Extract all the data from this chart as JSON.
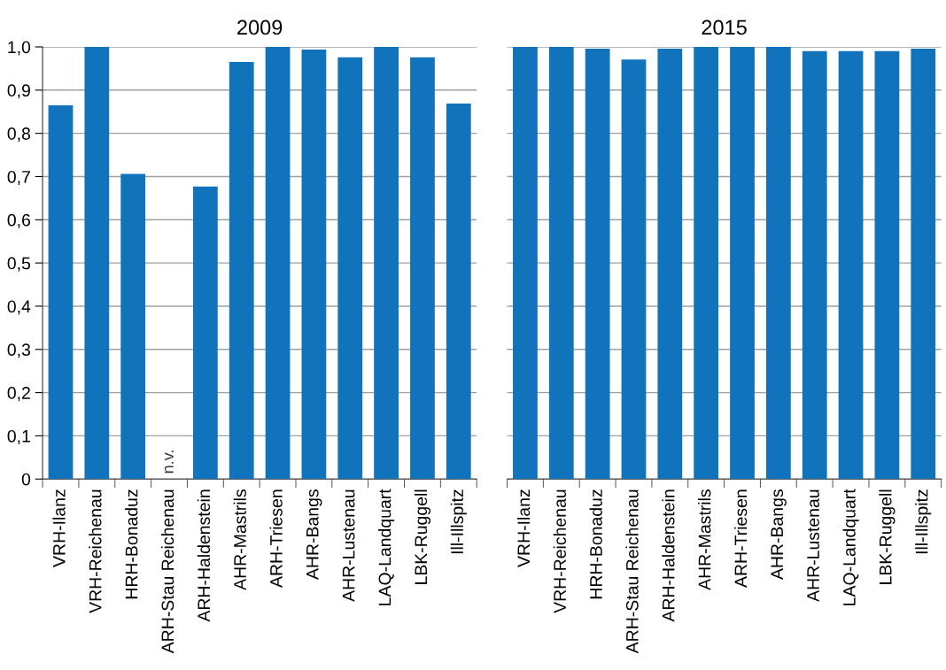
{
  "chart_data": [
    {
      "type": "bar",
      "title": "2009",
      "categories": [
        "VRH-Ilanz",
        "VRH-Reichenau",
        "HRH-Bonaduz",
        "ARH-Stau Reichenau",
        "ARH-Haldenstein",
        "AHR-Mastrils",
        "ARH-Triesen",
        "AHR-Bangs",
        "AHR-Lustenau",
        "LAQ-Landquart",
        "LBK-Ruggell",
        "Ill-Illspitz"
      ],
      "values": [
        0.865,
        1.0,
        0.706,
        null,
        0.677,
        0.965,
        1.0,
        0.994,
        0.976,
        1.0,
        0.976,
        0.869
      ],
      "color": "#1073bb",
      "ylim": [
        0,
        1.0
      ],
      "yticks": [
        {
          "value": 0,
          "label": "0"
        },
        {
          "value": 0.1,
          "label": "0,1"
        },
        {
          "value": 0.2,
          "label": "0,2"
        },
        {
          "value": 0.3,
          "label": "0,3"
        },
        {
          "value": 0.4,
          "label": "0,4"
        },
        {
          "value": 0.5,
          "label": "0,5"
        },
        {
          "value": 0.6,
          "label": "0,6"
        },
        {
          "value": 0.7,
          "label": "0,7"
        },
        {
          "value": 0.8,
          "label": "0,8"
        },
        {
          "value": 0.9,
          "label": "0,9"
        },
        {
          "value": 1.0,
          "label": "1,0"
        }
      ],
      "grid": "y",
      "annotations": [
        "n.v."
      ]
    },
    {
      "type": "bar",
      "title": "2015",
      "categories": [
        "VRH-Ilanz",
        "VRH-Reichenau",
        "HRH-Bonaduz",
        "ARH-Stau Reichenau",
        "ARH-Haldenstein",
        "AHR-Mastrils",
        "ARH-Triesen",
        "AHR-Bangs",
        "AHR-Lustenau",
        "LAQ-Landquart",
        "LBK-Ruggell",
        "Ill-Illspitz"
      ],
      "values": [
        1.0,
        1.0,
        0.996,
        0.971,
        0.996,
        1.0,
        1.0,
        1.0,
        0.99,
        0.99,
        0.99,
        0.996
      ],
      "color": "#1073bb",
      "ylim": [
        0,
        1.0
      ],
      "yticks": [
        {
          "value": 0,
          "label": null
        },
        {
          "value": 0.1,
          "label": null
        },
        {
          "value": 0.2,
          "label": null
        },
        {
          "value": 0.3,
          "label": null
        },
        {
          "value": 0.4,
          "label": null
        },
        {
          "value": 0.5,
          "label": null
        },
        {
          "value": 0.6,
          "label": null
        },
        {
          "value": 0.7,
          "label": null
        },
        {
          "value": 0.8,
          "label": null
        },
        {
          "value": 0.9,
          "label": null
        },
        {
          "value": 1.0,
          "label": null
        }
      ],
      "grid": "y",
      "tick_labels": "x"
    }
  ]
}
